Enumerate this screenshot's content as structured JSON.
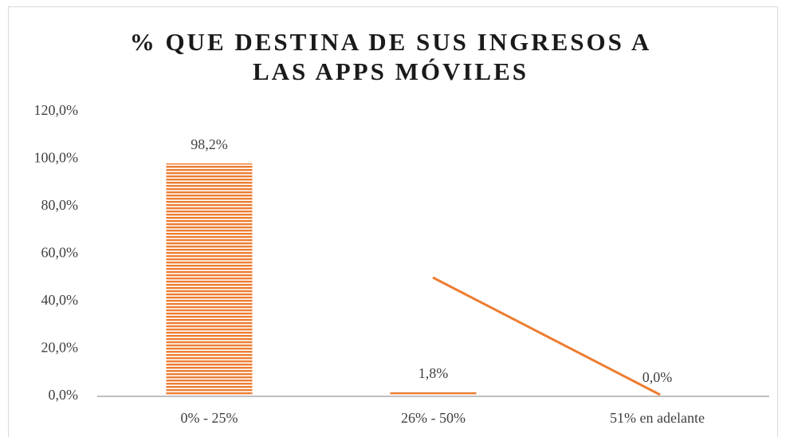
{
  "chart_data": {
    "type": "bar",
    "title": [
      "% QUE DESTINA DE SUS INGRESOS A",
      "LAS APPS MÓVILES"
    ],
    "categories": [
      "0% - 25%",
      "26% - 50%",
      "51% en adelante"
    ],
    "values": [
      98.2,
      1.8,
      0.0
    ],
    "value_labels": [
      "98,2%",
      "1,8%",
      "0,0%"
    ],
    "color": "#ed7d31",
    "ylim": [
      0,
      120
    ],
    "yticks": [
      {
        "value": 0,
        "label": "0,0%"
      },
      {
        "value": 20,
        "label": "20,0%"
      },
      {
        "value": 40,
        "label": "40,0%"
      },
      {
        "value": 60,
        "label": "60,0%"
      },
      {
        "value": 80,
        "label": "80,0%"
      },
      {
        "value": 100,
        "label": "100,0%"
      },
      {
        "value": 120,
        "label": "120,0%"
      }
    ],
    "grid": false
  }
}
